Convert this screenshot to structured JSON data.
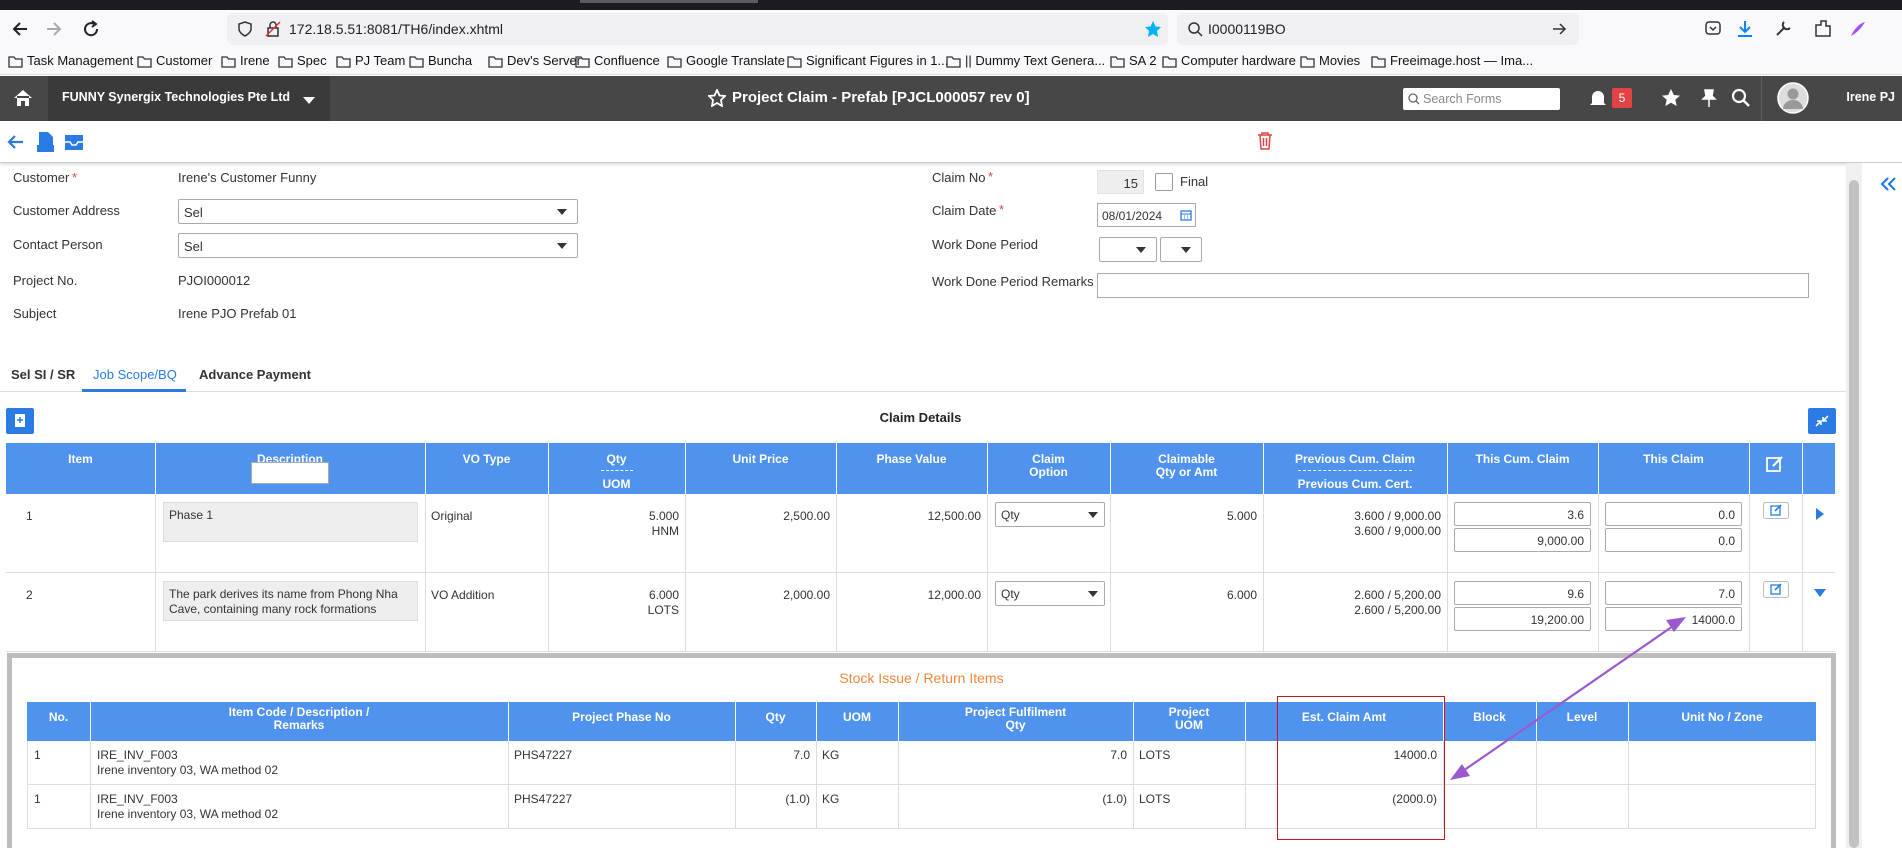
{
  "browser": {
    "url": "172.18.5.51:8081/TH6/index.xhtml",
    "search": "I0000119BO",
    "bookmarks": [
      "Task Management",
      "Customer",
      "Irene",
      "Spec",
      "PJ Team",
      "Buncha",
      "Dev's Server",
      "Confluence",
      "Google Translate",
      "Significant Figures in 1...",
      "|| Dummy Text Genera...",
      "SA 2",
      "Computer hardware",
      "Movies",
      "Freeimage.host — Ima..."
    ]
  },
  "header": {
    "company": "FUNNY Synergix Technologies Pte Ltd",
    "title": "Project Claim - Prefab [PJCL000057 rev 0]",
    "search_placeholder": "Search Forms",
    "notification_count": "5",
    "user": "Irene PJ"
  },
  "form": {
    "required_mark": "*",
    "left": [
      {
        "label": "Customer",
        "required": true,
        "kind": "text",
        "value": "Irene's Customer Funny"
      },
      {
        "label": "Customer Address",
        "required": false,
        "kind": "select",
        "value": "Sel"
      },
      {
        "label": "Contact Person",
        "required": false,
        "kind": "select",
        "value": "Sel"
      },
      {
        "label": "Project No.",
        "required": false,
        "kind": "text",
        "value": "PJOI000012"
      },
      {
        "label": "Subject",
        "required": false,
        "kind": "text",
        "value": "Irene PJO Prefab 01"
      }
    ],
    "claim_no": {
      "label": "Claim No",
      "required": true,
      "value": "15",
      "final_label": "Final"
    },
    "claim_date": {
      "label": "Claim Date",
      "required": true,
      "value": "08/01/2024"
    },
    "work_done_period": {
      "label": "Work Done Period"
    },
    "work_done_remarks": {
      "label": "Work Done Period Remarks"
    }
  },
  "tabs": {
    "items": [
      "Sel SI / SR",
      "Job Scope/BQ",
      "Advance Payment"
    ],
    "active": 1
  },
  "claim_details": {
    "title": "Claim Details",
    "headers": [
      [
        "Item"
      ],
      [
        "Description"
      ],
      [
        "VO Type"
      ],
      [
        "Qty",
        "UOM"
      ],
      [
        "Unit Price"
      ],
      [
        "Phase Value"
      ],
      [
        "Claim",
        "Option"
      ],
      [
        "Claimable",
        "Qty or Amt"
      ],
      [
        "Previous Cum. Claim",
        "Previous Cum. Cert."
      ],
      [
        "This Cum. Claim"
      ],
      [
        "This Claim"
      ]
    ],
    "rows": [
      {
        "item": "1",
        "description": "Phase 1",
        "vo_type": "Original",
        "qty": "5.000",
        "uom": "HNM",
        "unit_price": "2,500.00",
        "phase_value": "12,500.00",
        "claim_option": "Qty",
        "claimable": "5.000",
        "prev_cum_claim": "3.600 / 9,000.00",
        "prev_cum_cert": "3.600 / 9,000.00",
        "this_cum_qty": "3.6",
        "this_cum_amt": "9,000.00",
        "this_claim_qty": "0.0",
        "this_claim_amt": "0.0",
        "expanded": false
      },
      {
        "item": "2",
        "description": "The park derives its name from Phong Nha Cave, containing many rock formations",
        "vo_type": "VO Addition",
        "qty": "6.000",
        "uom": "LOTS",
        "unit_price": "2,000.00",
        "phase_value": "12,000.00",
        "claim_option": "Qty",
        "claimable": "6.000",
        "prev_cum_claim": "2.600 / 5,200.00",
        "prev_cum_cert": "2.600 / 5,200.00",
        "this_cum_qty": "9.6",
        "this_cum_amt": "19,200.00",
        "this_claim_qty": "7.0",
        "this_claim_amt": "14000.0",
        "expanded": true
      }
    ]
  },
  "stock_items": {
    "title": "Stock Issue / Return Items",
    "headers": [
      [
        "No."
      ],
      [
        "Item Code / Description /",
        "Remarks"
      ],
      [
        "Project Phase No"
      ],
      [
        "Qty"
      ],
      [
        "UOM"
      ],
      [
        "Project Fulfilment",
        "Qty"
      ],
      [
        "Project",
        "UOM"
      ],
      [
        "Est. Claim Amt"
      ],
      [
        "Block"
      ],
      [
        "Level"
      ],
      [
        "Unit No / Zone"
      ]
    ],
    "rows": [
      {
        "no": "1",
        "item_code": "IRE_INV_F003",
        "description": "Irene inventory 03, WA method 02",
        "phase_no": "PHS47227",
        "qty": "7.0",
        "uom": "KG",
        "fulfilment_qty": "7.0",
        "project_uom": "LOTS",
        "est_claim_amt": "14000.0"
      },
      {
        "no": "1",
        "item_code": "IRE_INV_F003",
        "description": "Irene inventory 03, WA method 02",
        "phase_no": "PHS47227",
        "qty": "(1.0)",
        "uom": "KG",
        "fulfilment_qty": "(1.0)",
        "project_uom": "LOTS",
        "est_claim_amt": "(2000.0)"
      }
    ]
  }
}
